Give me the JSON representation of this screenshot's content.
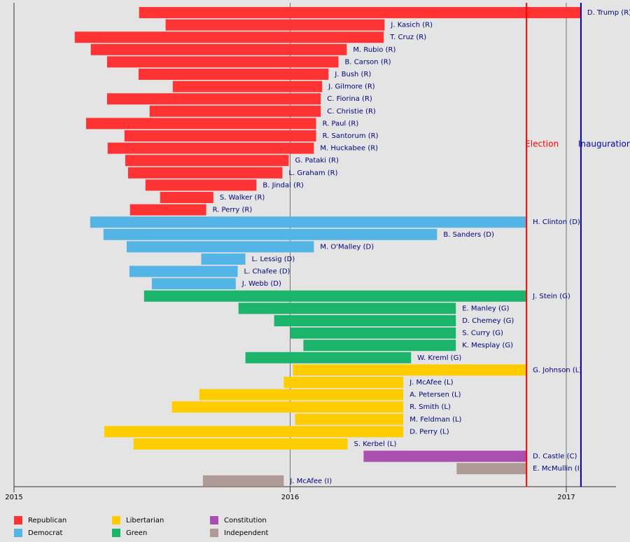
{
  "chart_data": {
    "type": "timeline",
    "xlim": [
      2015,
      2017.18
    ],
    "xticks": [
      2015,
      2016,
      2017
    ],
    "grid": true,
    "legend": "bottom",
    "series": [
      {
        "name": "Republican",
        "color": "#ff3333",
        "labels": [
          "D. Trump (R)",
          "J. Kasich (R)",
          "T. Cruz (R)",
          "M. Rubio (R)",
          "B. Carson (R)",
          "J. Bush (R)",
          "J. Gilmore (R)",
          "C. Fiorina (R)",
          "C. Christie (R)",
          "R. Paul (R)",
          "R. Santorum (R)",
          "M. Huckabee (R)",
          "G. Pataki (R)",
          "L. Graham (R)",
          "B. Jindal (R)",
          "S. Walker (R)",
          "R. Perry (R)"
        ],
        "start": [
          2015.453,
          2015.549,
          2015.22,
          2015.278,
          2015.337,
          2015.451,
          2015.575,
          2015.337,
          2015.491,
          2015.261,
          2015.4,
          2015.339,
          2015.403,
          2015.413,
          2015.476,
          2015.529,
          2015.42
        ],
        "end": [
          2017.053,
          2016.342,
          2016.339,
          2016.205,
          2016.175,
          2016.139,
          2016.116,
          2016.111,
          2016.111,
          2016.094,
          2016.094,
          2016.086,
          2015.995,
          2015.972,
          2015.878,
          2015.722,
          2015.696
        ]
      },
      {
        "name": "Democrat",
        "color": "#55b4e6",
        "labels": [
          "H. Clinton (D)",
          "B. Sanders (D)",
          "M. O'Malley (D)",
          "L. Lessig (D)",
          "L. Chafee (D)",
          "J. Webb (D)"
        ],
        "start": [
          2015.276,
          2015.324,
          2015.408,
          2015.678,
          2015.418,
          2015.499
        ],
        "end": [
          2016.856,
          2016.532,
          2016.086,
          2015.838,
          2015.81,
          2015.803
        ]
      },
      {
        "name": "Green",
        "color": "#1cb46a",
        "labels": [
          "J. Stein (G)",
          "E. Manley (G)",
          "D. Chemey (G)",
          "S. Curry (G)",
          "K. Mesplay (G)",
          "W. Kreml (G)"
        ],
        "start": [
          2015.471,
          2015.813,
          2015.942,
          2016.0,
          2016.048,
          2015.838
        ],
        "end": [
          2016.856,
          2016.6,
          2016.6,
          2016.6,
          2016.6,
          2016.438
        ]
      },
      {
        "name": "Libertarian",
        "color": "#ffcc00",
        "labels": [
          "G. Johnson (L)",
          "J. McAfee (L)",
          "A. Petersen (L)",
          "R. Smith (L)",
          "M. Feldman (L)",
          "D. Perry (L)",
          "S. Kerbel (L)"
        ],
        "start": [
          2016.01,
          2015.977,
          2015.671,
          2015.572,
          2016.018,
          2015.327,
          2015.433
        ],
        "end": [
          2016.856,
          2016.41,
          2016.41,
          2016.41,
          2016.41,
          2016.41,
          2016.208
        ]
      },
      {
        "name": "Constitution",
        "color": "#aa4fb0",
        "labels": [
          "D. Castle (C)"
        ],
        "start": [
          2016.266
        ],
        "end": [
          2016.856
        ]
      },
      {
        "name": "Independent",
        "color": "#b09a96",
        "labels": [
          "E. McMullin (I)",
          "J. McAfee (I)"
        ],
        "start": [
          2016.603,
          2015.684
        ],
        "end": [
          2016.856,
          2015.977
        ]
      }
    ],
    "events": [
      {
        "label": "Election",
        "x": 2016.856,
        "color": "#ff0000"
      },
      {
        "label": "Inauguration",
        "x": 2017.053,
        "color": "#0000aa"
      }
    ]
  }
}
